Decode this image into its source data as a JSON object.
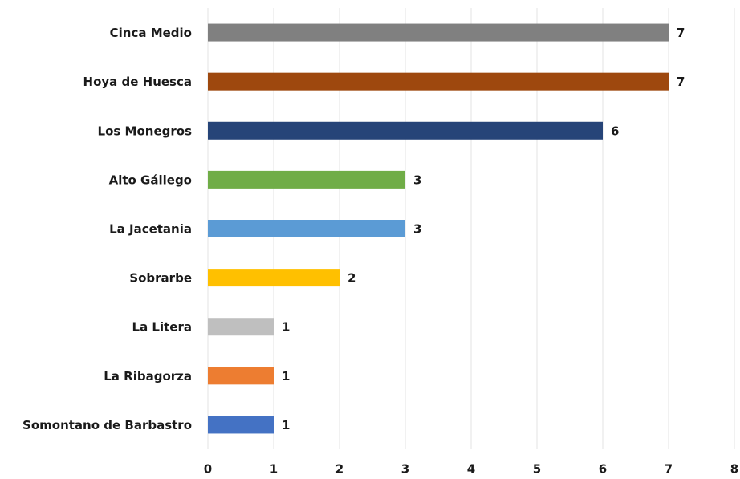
{
  "chart_data": {
    "type": "barh",
    "categories": [
      "Cinca Medio",
      "Hoya de Huesca",
      "Los Monegros",
      "Alto Gállego",
      "La Jacetania",
      "Sobrarbe",
      "La Litera",
      "La Ribagorza",
      "Somontano de Barbastro"
    ],
    "values": [
      7,
      7,
      6,
      3,
      3,
      2,
      1,
      1,
      1
    ],
    "colors": [
      "#808080",
      "#9e480e",
      "#264478",
      "#70ad47",
      "#5b9bd5",
      "#ffc000",
      "#bfbfbf",
      "#ed7d31",
      "#4472c4"
    ],
    "xlim": [
      0,
      8
    ],
    "xticks": [
      0,
      1,
      2,
      3,
      4,
      5,
      6,
      7,
      8
    ],
    "grid": true
  }
}
